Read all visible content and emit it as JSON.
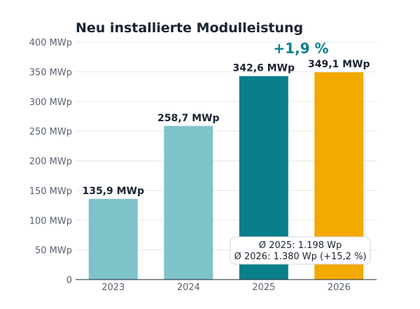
{
  "chart_data": {
    "type": "bar",
    "title": "Neu installierte Modulleistung",
    "xlabel": "",
    "ylabel": "",
    "categories": [
      "2023",
      "2024",
      "2025",
      "2026"
    ],
    "values": [
      135.9,
      258.7,
      342.6,
      349.1
    ],
    "value_labels": [
      "135,9 MWp",
      "258,7 MWp",
      "342,6 MWp",
      "349,1 MWp"
    ],
    "bar_colors": [
      "#7fc4ca",
      "#7fc4ca",
      "#0a7f8c",
      "#f2a900"
    ],
    "ylim": [
      0,
      400
    ],
    "yticks": [
      0,
      50,
      100,
      150,
      200,
      250,
      300,
      350,
      400
    ],
    "ytick_labels": [
      "0",
      "50 MWp",
      "100 MWp",
      "150 MWp",
      "200 MWp",
      "250 MWp",
      "300 MWp",
      "350 MWp",
      "400 MWp"
    ],
    "grid": true,
    "annotations": {
      "growth": "+1,9 %",
      "growth_color": "#0a7f8c",
      "note_lines": [
        "Ø 2025: 1.198 Wp",
        "Ø 2026: 1.380 Wp (+15,2 %)"
      ]
    }
  }
}
